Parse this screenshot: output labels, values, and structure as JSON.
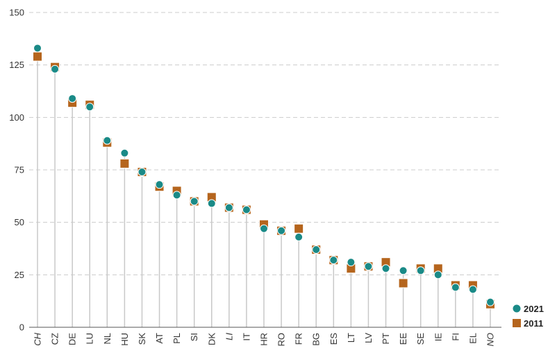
{
  "chart_data": {
    "type": "scatter",
    "categories": [
      "CH",
      "CZ",
      "DE",
      "LU",
      "NL",
      "HU",
      "SK",
      "AT",
      "PL",
      "SI",
      "DK",
      "LI",
      "IT",
      "HR",
      "RO",
      "FR",
      "BG",
      "ES",
      "LT",
      "LV",
      "PT",
      "EE",
      "SE",
      "IE",
      "FI",
      "EL",
      "NO"
    ],
    "italic_categories": [
      "CH",
      "LI",
      "NO"
    ],
    "ylim": [
      0,
      150
    ],
    "yticks": [
      0,
      25,
      50,
      75,
      100,
      125,
      150
    ],
    "grid": true,
    "legend_position": "bottom-right",
    "series": [
      {
        "name": "2021",
        "marker": "circle",
        "color": "#1a8a87",
        "values": [
          133,
          123,
          109,
          105,
          89,
          83,
          74,
          68,
          63,
          60,
          59,
          57,
          56,
          47,
          46,
          43,
          37,
          32,
          31,
          29,
          28,
          27,
          27,
          25,
          19,
          18,
          12
        ]
      },
      {
        "name": "2011",
        "marker": "square",
        "color": "#b5651d",
        "values": [
          129,
          124,
          107,
          106,
          88,
          78,
          74,
          67,
          65,
          60,
          62,
          57,
          56,
          49,
          46,
          47,
          37,
          32,
          28,
          29,
          31,
          21,
          28,
          28,
          20,
          20,
          11
        ]
      }
    ],
    "colors": {
      "grid": "#cccccc",
      "axis": "#555555",
      "stem": "#c8c8c8"
    }
  }
}
